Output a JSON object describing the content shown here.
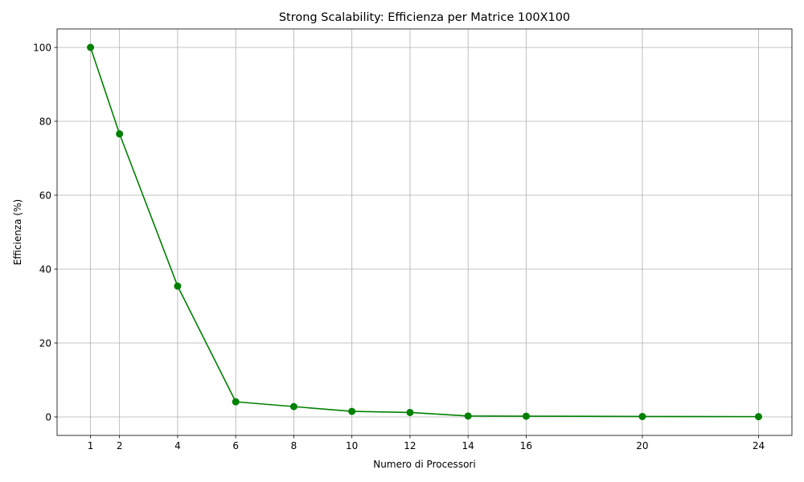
{
  "chart_data": {
    "type": "line",
    "title": "Strong Scalability: Efficienza per Matrice 100X100",
    "xlabel": "Numero di Processori",
    "ylabel": "Efficienza (%)",
    "x": [
      1,
      2,
      4,
      6,
      8,
      10,
      12,
      14,
      16,
      20,
      24
    ],
    "series": [
      {
        "values": [
          100,
          76.6,
          35.4,
          4.1,
          2.8,
          1.5,
          1.2,
          0.25,
          0.2,
          0.12,
          0.08
        ],
        "color": "#008000",
        "marker": "circle"
      }
    ],
    "xticks": [
      1,
      2,
      4,
      6,
      8,
      10,
      12,
      14,
      16,
      20,
      24
    ],
    "yticks": [
      0,
      20,
      40,
      60,
      80,
      100
    ],
    "xlim": [
      -0.15,
      25.15
    ],
    "ylim": [
      -5,
      105
    ],
    "grid": true,
    "legend": "none"
  }
}
